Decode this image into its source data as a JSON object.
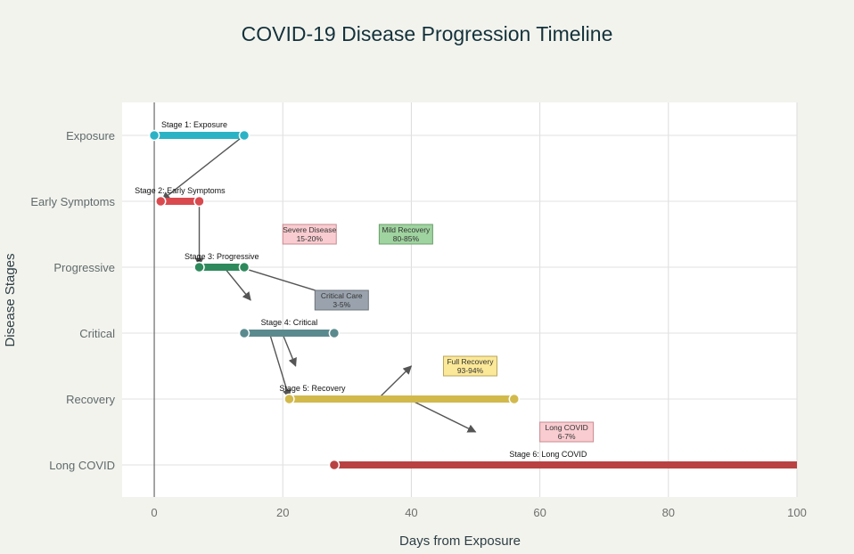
{
  "chart_data": {
    "type": "timeline",
    "title": "COVID-19 Disease Progression Timeline",
    "xlabel": "Days from Exposure",
    "ylabel": "Disease Stages",
    "xlim": [
      -5,
      100
    ],
    "xticks": [
      0,
      20,
      40,
      60,
      80,
      100
    ],
    "grid": true,
    "legend": "none",
    "categories": [
      "Exposure",
      "Early Symptoms",
      "Progressive",
      "Critical",
      "Recovery",
      "Long COVID"
    ],
    "series": [
      {
        "name": "Stage 1: Exposure",
        "category": "Exposure",
        "start": 0,
        "end": 14,
        "color": "#2bb3c5",
        "end_markers": true
      },
      {
        "name": "Stage 2: Early Symptoms",
        "category": "Early Symptoms",
        "start": 1,
        "end": 7,
        "color": "#d94a4f",
        "end_markers": true
      },
      {
        "name": "Stage 3: Progressive",
        "category": "Progressive",
        "start": 7,
        "end": 14,
        "color": "#2e8a5c",
        "end_markers": true
      },
      {
        "name": "Stage 4: Critical",
        "category": "Critical",
        "start": 14,
        "end": 28,
        "color": "#5a8a8e",
        "end_markers": true
      },
      {
        "name": "Stage 5: Recovery",
        "category": "Recovery",
        "start": 21,
        "end": 56,
        "color": "#d2b94c",
        "end_markers": true
      },
      {
        "name": "Stage 6: Long COVID",
        "category": "Long COVID",
        "start": 28,
        "end": 100,
        "color": "#b84241",
        "end_markers": false
      }
    ],
    "annotations": [
      {
        "line1": "Severe Disease",
        "line2": "15-20%",
        "x": 20,
        "y": 3.5,
        "bg": "#f8ccd0",
        "border": "#c98a90"
      },
      {
        "line1": "Mild Recovery",
        "line2": "80-85%",
        "x": 35,
        "y": 3.5,
        "bg": "#9fd39f",
        "border": "#6a9e6a"
      },
      {
        "line1": "Critical Care",
        "line2": "3-5%",
        "x": 25,
        "y": 2.5,
        "bg": "#9aa3ad",
        "border": "#6c747c"
      },
      {
        "line1": "Full Recovery",
        "line2": "93-94%",
        "x": 45,
        "y": 1.5,
        "bg": "#fbe898",
        "border": "#b9a65a"
      },
      {
        "line1": "Long COVID",
        "line2": "6-7%",
        "x": 60,
        "y": 0.5,
        "bg": "#f8ccd0",
        "border": "#c98a90"
      }
    ],
    "arrows": [
      {
        "from": [
          14,
          5
        ],
        "to": [
          1.2,
          4.02
        ]
      },
      {
        "from": [
          7,
          3.98
        ],
        "to": [
          7,
          3.02
        ]
      },
      {
        "from": [
          11,
          2.98
        ],
        "to": [
          15,
          2.5
        ]
      },
      {
        "from": [
          14,
          2.98
        ],
        "to": [
          30,
          2.5
        ]
      },
      {
        "from": [
          20,
          1.98
        ],
        "to": [
          22,
          1.5
        ]
      },
      {
        "from": [
          18,
          1.98
        ],
        "to": [
          21,
          1.02
        ]
      },
      {
        "from": [
          35,
          1.02
        ],
        "to": [
          40,
          1.5
        ]
      },
      {
        "from": [
          40,
          0.98
        ],
        "to": [
          50,
          0.5
        ]
      }
    ]
  }
}
